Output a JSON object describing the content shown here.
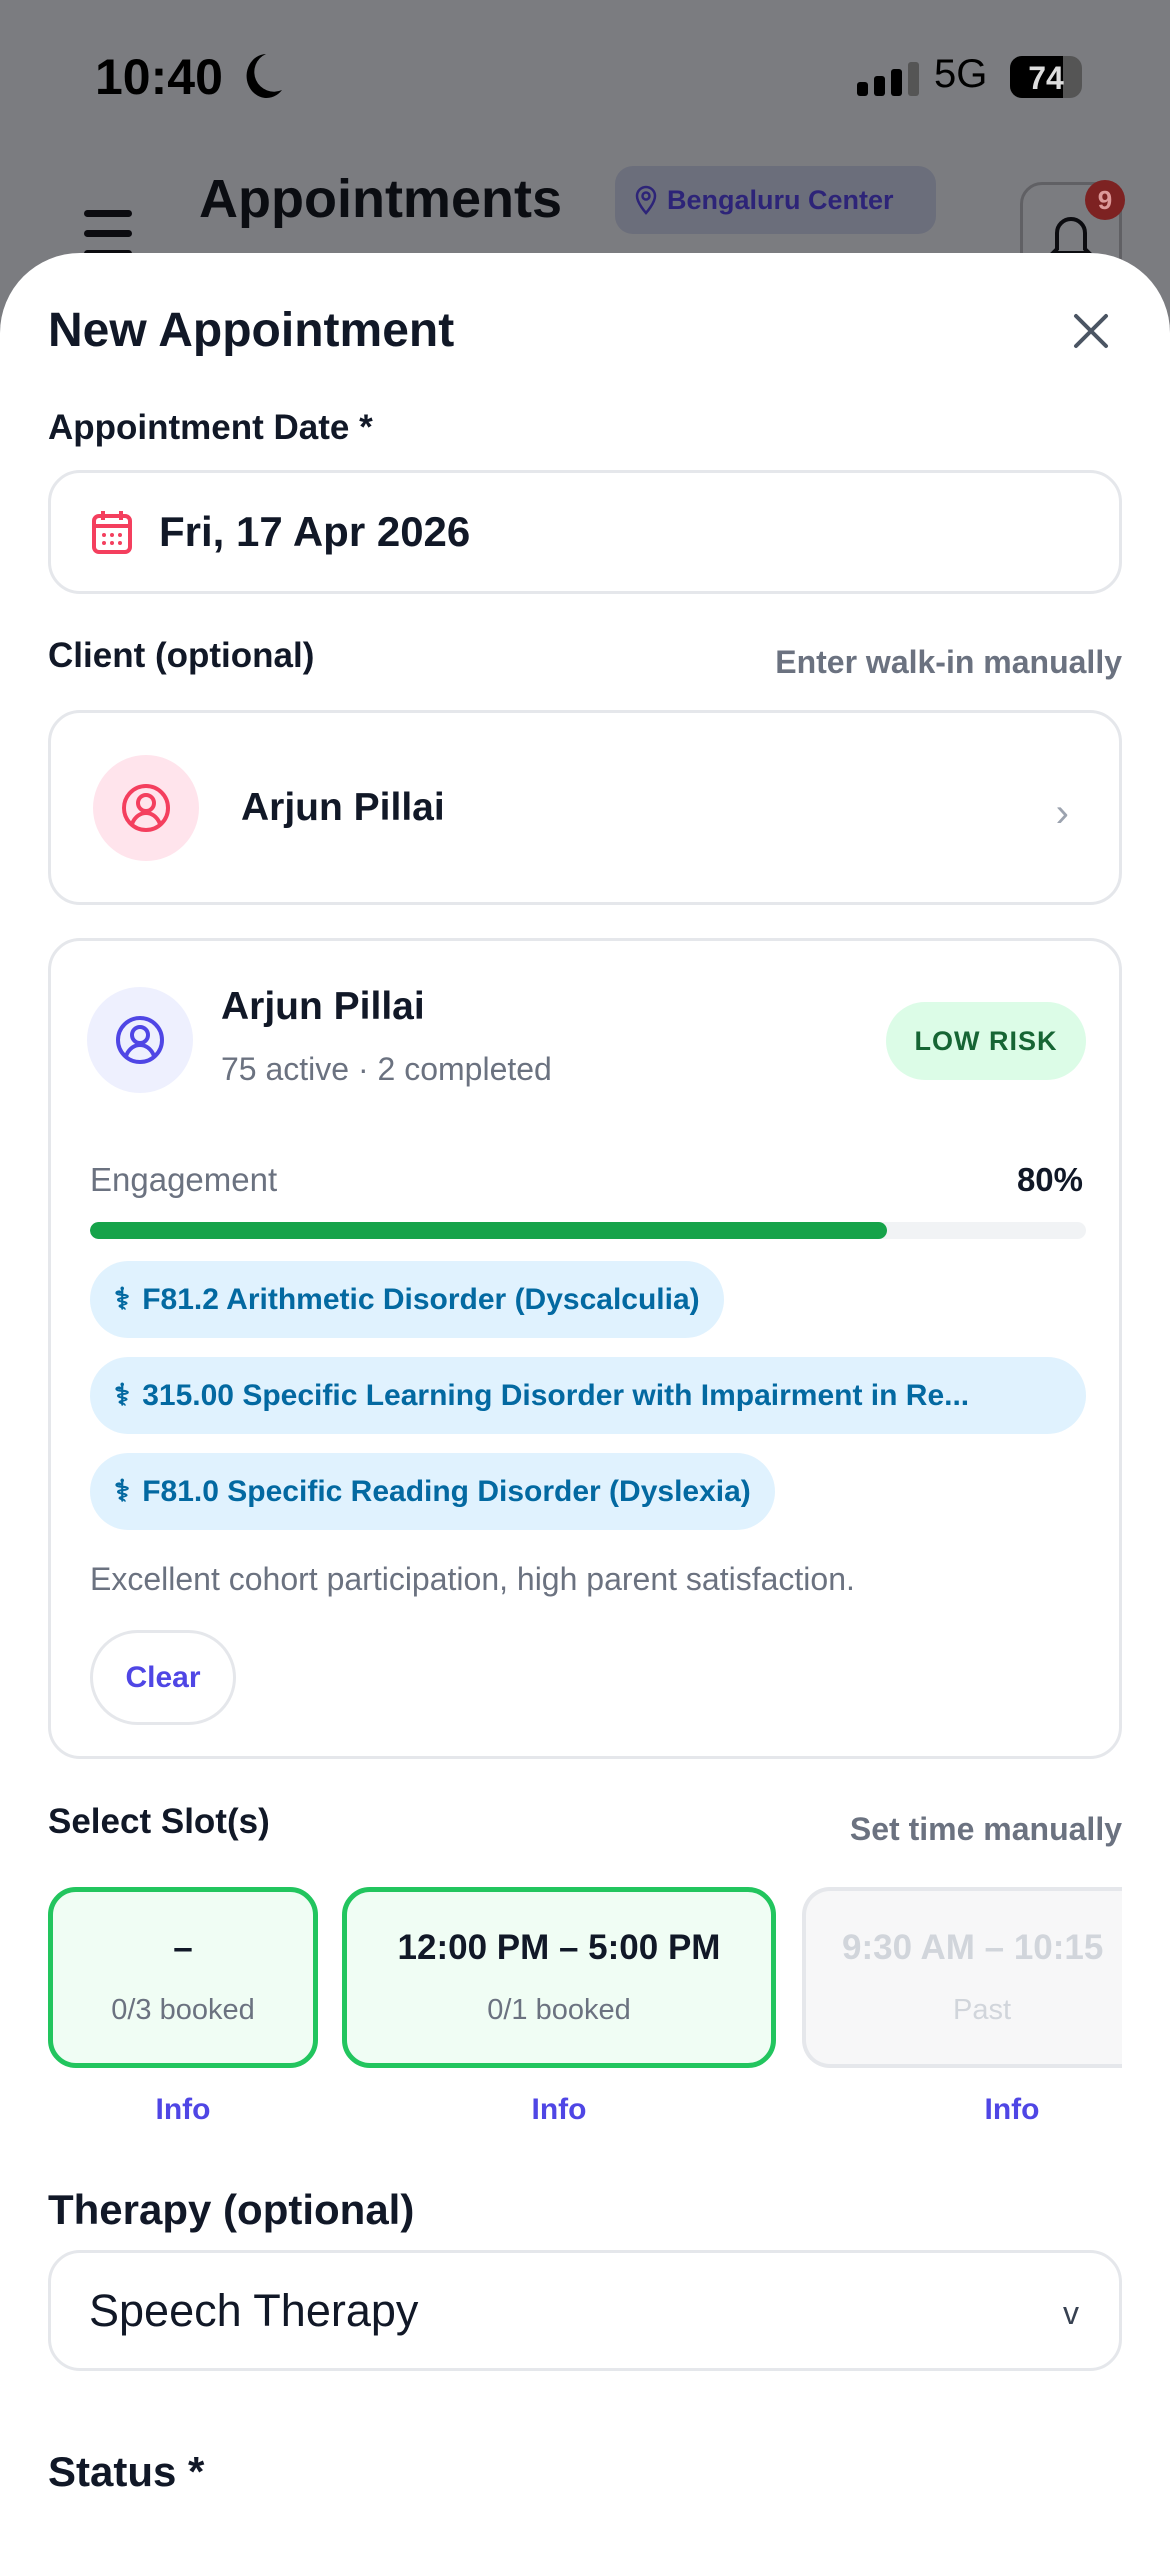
{
  "status_bar": {
    "time": "10:40",
    "network": "5G",
    "battery": "74",
    "battery_level": 74
  },
  "header": {
    "title": "Appointments",
    "location": "Bengaluru Center",
    "notification_count": "9"
  },
  "sheet": {
    "title": "New Appointment",
    "date_label": "Appointment Date *",
    "date_value": "Fri, 17 Apr 2026",
    "client_label": "Client (optional)",
    "walkin_link": "Enter walk-in manually",
    "client_selected": "Arjun Pillai",
    "client_card": {
      "name": "Arjun Pillai",
      "summary": "75 active · 2 completed",
      "risk": "LOW RISK",
      "engagement_label": "Engagement",
      "engagement_value": "80%",
      "engagement_fraction": 0.8,
      "diagnoses": [
        "F81.2 Arithmetic Disorder (Dyscalculia)",
        "315.00 Specific Learning Disorder with Impairment in Re...",
        "F81.0 Specific Reading Disorder (Dyslexia)"
      ],
      "note": "Excellent cohort participation, high parent satisfaction.",
      "clear_label": "Clear"
    },
    "slots_label": "Select Slot(s)",
    "manual_time_link": "Set time manually",
    "slots": [
      {
        "time": "–",
        "sub": "0/3 booked",
        "info": "Info"
      },
      {
        "time": "12:00 PM – 5:00 PM",
        "sub": "0/1 booked",
        "info": "Info"
      },
      {
        "time": "9:30 AM – 10:15",
        "sub": "Past",
        "info": "Info"
      }
    ],
    "therapy_label": "Therapy (optional)",
    "therapy_value": "Speech Therapy",
    "status_label": "Status *"
  },
  "colors": {
    "accent": "#4f46e5",
    "success": "#22c55e",
    "pink": "#f43f5e",
    "chip_text": "#0369a1"
  }
}
